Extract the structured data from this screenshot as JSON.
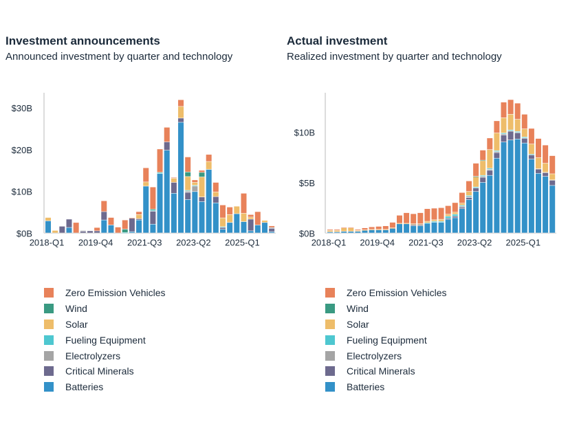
{
  "colors": {
    "Zero Emission Vehicles": "#e8825a",
    "Wind": "#3a9a82",
    "Solar": "#eebd6a",
    "Fueling Equipment": "#4ec7d0",
    "Electrolyzers": "#a5a5a5",
    "Critical Minerals": "#6d6a8e",
    "Batteries": "#3391c8"
  },
  "chart_data": [
    {
      "type": "bar",
      "stacked": true,
      "title": "Investment announcements",
      "subtitle": "Announced investment by quarter and technology",
      "xlabel": "",
      "ylabel": "",
      "ylim": [
        0,
        32
      ],
      "yticks": [
        {
          "v": 0,
          "label": "$0B"
        },
        {
          "v": 10,
          "label": "$10B"
        },
        {
          "v": 20,
          "label": "$20B"
        },
        {
          "v": 30,
          "label": "$30B"
        }
      ],
      "xticks": [
        {
          "i": 0,
          "label": "2018-Q1"
        },
        {
          "i": 7,
          "label": "2019-Q4"
        },
        {
          "i": 14,
          "label": "2021-Q3"
        },
        {
          "i": 21,
          "label": "2023-Q2"
        },
        {
          "i": 28,
          "label": "2025-Q1"
        }
      ],
      "legend": [
        "Zero Emission Vehicles",
        "Wind",
        "Solar",
        "Fueling Equipment",
        "Electrolyzers",
        "Critical Minerals",
        "Batteries"
      ],
      "series_order": [
        "Batteries",
        "Critical Minerals",
        "Electrolyzers",
        "Fueling Equipment",
        "Solar",
        "Wind",
        "Zero Emission Vehicles"
      ],
      "data": [
        [
          2.9,
          0,
          0,
          0,
          0.8,
          0,
          0
        ],
        [
          0,
          0,
          0,
          0,
          0.6,
          0,
          0
        ],
        [
          0,
          1.6,
          0,
          0,
          0,
          0,
          0
        ],
        [
          1.3,
          2.0,
          0,
          0,
          0,
          0,
          0
        ],
        [
          0,
          0,
          0,
          0,
          0,
          0,
          2.5
        ],
        [
          0,
          0.4,
          0.2,
          0,
          0,
          0,
          0
        ],
        [
          0,
          0.5,
          0,
          0,
          0,
          0,
          0
        ],
        [
          0,
          0.5,
          0,
          0,
          0,
          0,
          0.8
        ],
        [
          3.1,
          2.0,
          0,
          0,
          0,
          0,
          2.6
        ],
        [
          1.9,
          0,
          0,
          0,
          0,
          0,
          1.8
        ],
        [
          0,
          0,
          0,
          0,
          0,
          0,
          1.4
        ],
        [
          0,
          0,
          0,
          0.1,
          0,
          0.8,
          2.2
        ],
        [
          0.3,
          3.2,
          0,
          0,
          0,
          0,
          0.1
        ],
        [
          3.1,
          0.3,
          0,
          0,
          1.0,
          0,
          0.7
        ],
        [
          11.2,
          0,
          0,
          0,
          1.0,
          0,
          3.4
        ],
        [
          2.1,
          3.1,
          0,
          0.2,
          0,
          0.3,
          5.3
        ],
        [
          14.2,
          0,
          0,
          0.3,
          0,
          0,
          5.6
        ],
        [
          19.8,
          2.0,
          0,
          0,
          0,
          0,
          3.5
        ],
        [
          9.5,
          2.6,
          0,
          0,
          1.0,
          0,
          0.2
        ],
        [
          26.5,
          1.0,
          0,
          0,
          2.8,
          0,
          1.6
        ],
        [
          8.0,
          1.7,
          0.3,
          0.2,
          3.3,
          1.1,
          3.6
        ],
        [
          9.9,
          0,
          1.3,
          0.2,
          0.7,
          0,
          0.6
        ],
        [
          7.5,
          1.1,
          0,
          0,
          4.8,
          1.1,
          0.5
        ],
        [
          15.2,
          0,
          0,
          0,
          1.9,
          0,
          1.7
        ],
        [
          7.2,
          1.5,
          0,
          0,
          1.1,
          0,
          2.3
        ],
        [
          0.9,
          0.4,
          0,
          0.2,
          2.1,
          0,
          3.1
        ],
        [
          2.5,
          0,
          0,
          0,
          1.9,
          0,
          1.8
        ],
        [
          4.6,
          0,
          0,
          0,
          1.8,
          0,
          0
        ],
        [
          2.7,
          0,
          0,
          0,
          2.0,
          0,
          4.8
        ],
        [
          0.5,
          2.8,
          0,
          0,
          0.5,
          0,
          0.6
        ],
        [
          1.9,
          0,
          0,
          0,
          0,
          0,
          3.2
        ],
        [
          2.5,
          0,
          0,
          0,
          0.5,
          0,
          0
        ],
        [
          0.3,
          0.8,
          0.2,
          0,
          0,
          0,
          0.4
        ]
      ]
    },
    {
      "type": "bar",
      "stacked": true,
      "title": "Actual investment",
      "subtitle": "Realized investment by quarter and technology",
      "xlabel": "",
      "ylabel": "",
      "ylim": [
        0,
        13.5
      ],
      "yticks": [
        {
          "v": 0,
          "label": "$0B"
        },
        {
          "v": 5,
          "label": "$5B"
        },
        {
          "v": 10,
          "label": "$10B"
        }
      ],
      "xticks": [
        {
          "i": 0,
          "label": "2018-Q1"
        },
        {
          "i": 7,
          "label": "2019-Q4"
        },
        {
          "i": 14,
          "label": "2021-Q3"
        },
        {
          "i": 21,
          "label": "2023-Q2"
        },
        {
          "i": 28,
          "label": "2025-Q1"
        }
      ],
      "legend": [
        "Zero Emission Vehicles",
        "Wind",
        "Solar",
        "Fueling Equipment",
        "Electrolyzers",
        "Critical Minerals",
        "Batteries"
      ],
      "series_order": [
        "Batteries",
        "Critical Minerals",
        "Electrolyzers",
        "Fueling Equipment",
        "Solar",
        "Wind",
        "Zero Emission Vehicles"
      ],
      "data": [
        [
          0.1,
          0,
          0,
          0,
          0.15,
          0,
          0.1
        ],
        [
          0.1,
          0,
          0,
          0,
          0.15,
          0,
          0.1
        ],
        [
          0.15,
          0,
          0,
          0,
          0.35,
          0,
          0.05
        ],
        [
          0.15,
          0,
          0,
          0,
          0.35,
          0,
          0.05
        ],
        [
          0.15,
          0,
          0,
          0,
          0.1,
          0,
          0.1
        ],
        [
          0.25,
          0,
          0,
          0,
          0.05,
          0,
          0.2
        ],
        [
          0.3,
          0,
          0,
          0,
          0.05,
          0,
          0.25
        ],
        [
          0.3,
          0,
          0,
          0,
          0.05,
          0,
          0.3
        ],
        [
          0.3,
          0,
          0,
          0,
          0.05,
          0,
          0.35
        ],
        [
          0.45,
          0,
          0,
          0,
          0.05,
          0,
          0.55
        ],
        [
          0.9,
          0,
          0,
          0,
          0.05,
          0,
          0.8
        ],
        [
          0.9,
          0,
          0,
          0,
          0.05,
          0,
          1.05
        ],
        [
          0.7,
          0.1,
          0.05,
          0,
          0.05,
          0,
          1.0
        ],
        [
          0.7,
          0.1,
          0.05,
          0,
          0.05,
          0,
          1.1
        ],
        [
          0.95,
          0,
          0,
          0.05,
          0.15,
          0,
          1.25
        ],
        [
          1.05,
          0,
          0,
          0.1,
          0.15,
          0,
          1.15
        ],
        [
          1.05,
          0,
          0,
          0.1,
          0.2,
          0,
          1.15
        ],
        [
          1.35,
          0.1,
          0,
          0.2,
          0.2,
          0,
          0.85
        ],
        [
          1.5,
          0.15,
          0,
          0.2,
          0.2,
          0,
          0.95
        ],
        [
          2.4,
          0.15,
          0.1,
          0.1,
          0.2,
          0,
          1.05
        ],
        [
          3.3,
          0.2,
          0.1,
          0.1,
          0.4,
          0,
          1.05
        ],
        [
          4.1,
          0.35,
          0,
          0.1,
          1.0,
          0.05,
          1.3
        ],
        [
          5.0,
          0.5,
          0.1,
          0.1,
          1.45,
          0.05,
          1.0
        ],
        [
          5.7,
          0.5,
          0.1,
          0.1,
          1.85,
          0,
          1.15
        ],
        [
          7.4,
          0.55,
          0.1,
          0.1,
          1.75,
          0,
          1.2
        ],
        [
          9.0,
          0.7,
          0.1,
          0.1,
          1.5,
          0,
          1.55
        ],
        [
          9.2,
          0.85,
          0.05,
          0.1,
          1.55,
          0,
          1.45
        ],
        [
          9.3,
          0.6,
          0.05,
          0.1,
          1.2,
          0,
          1.6
        ],
        [
          8.9,
          0.45,
          0.05,
          0.1,
          0.8,
          0,
          1.45
        ],
        [
          7.3,
          0.4,
          0.05,
          0.05,
          1.0,
          0,
          1.55
        ],
        [
          5.9,
          0.4,
          0.05,
          0,
          1.1,
          0,
          1.9
        ],
        [
          5.6,
          0.35,
          0.05,
          0,
          0.9,
          0,
          1.8
        ],
        [
          4.7,
          0.5,
          0.05,
          0,
          0.6,
          0,
          1.8
        ]
      ]
    }
  ]
}
